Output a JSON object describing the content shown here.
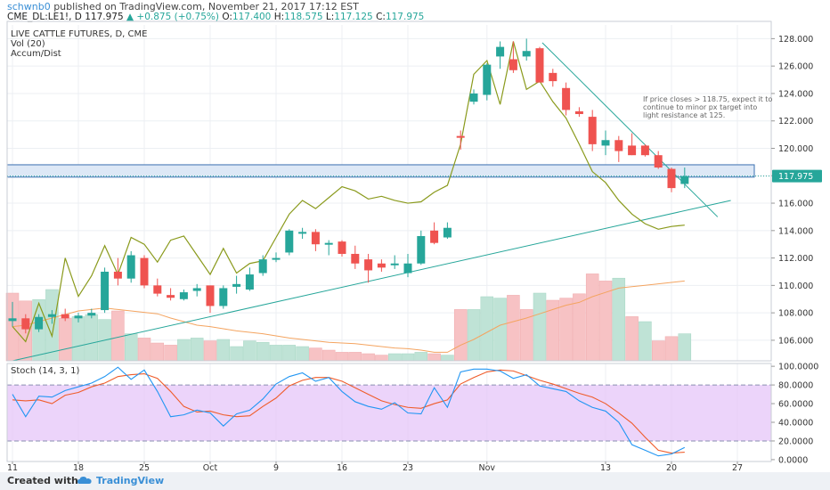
{
  "header": {
    "user": "schwnb0",
    "published": "published on TradingView.com, November 21, 2017 17:12 EST",
    "symbol": "CME_DL:LE1!, D",
    "last": "117.975",
    "change": "+0.875 (+0.75%)",
    "open_label": "O:",
    "open": "117.400",
    "high_label": "H:",
    "high": "118.575",
    "low_label": "L:",
    "low": "117.125",
    "close_label": "C:",
    "close": "117.975"
  },
  "legend": {
    "title": "LIVE CATTLE FUTURES, D, CME",
    "vol": "Vol (20)",
    "accum": "Accum/Dist"
  },
  "stoch_label": "Stoch (14, 3, 1)",
  "annotation": "If price closes > 118.75, expect it to continue to minor px target into light resistance at 125.",
  "footer": {
    "created": "Created with",
    "brand": "TradingView"
  },
  "colors": {
    "up": "#26a69a",
    "down": "#ef5350",
    "accum": "#8a9a1c",
    "vol_ma": "#f4a460",
    "trend": "#26a69a",
    "stoch_k": "#2196f3",
    "stoch_d": "#ef5c2a",
    "stoch_band": "#e6c6f8",
    "zone_fill": "#dde8f6",
    "zone_stroke": "#3a6fb0",
    "last_badge": "#26a69a"
  },
  "chart_data": [
    {
      "type": "candlestick",
      "title": "LIVE CATTLE FUTURES, D, CME",
      "ylim": [
        104.5,
        129
      ],
      "y_ticks": [
        "128.000",
        "126.000",
        "124.000",
        "122.000",
        "120.000",
        "118.000",
        "116.000",
        "114.000",
        "112.000",
        "110.000",
        "108.000",
        "106.000"
      ],
      "x_ticks": [
        "11",
        "18",
        "25",
        "Oct",
        "9",
        "16",
        "23",
        "Nov",
        "13",
        "20",
        "27"
      ],
      "last_price": "117.975",
      "candles": [
        [
          107.4,
          108.8,
          107.0,
          107.6
        ],
        [
          107.6,
          107.9,
          106.5,
          106.8
        ],
        [
          106.8,
          107.9,
          106.6,
          107.7
        ],
        [
          107.7,
          108.2,
          107.2,
          107.9
        ],
        [
          107.9,
          108.3,
          107.4,
          107.6
        ],
        [
          107.6,
          108.0,
          107.3,
          107.8
        ],
        [
          107.8,
          108.3,
          107.6,
          108.0
        ],
        [
          108.2,
          111.3,
          108.0,
          111.0
        ],
        [
          111.0,
          112.0,
          110.0,
          110.5
        ],
        [
          110.5,
          112.5,
          110.2,
          112.2
        ],
        [
          112.0,
          112.2,
          109.8,
          110.0
        ],
        [
          110.0,
          110.5,
          109.2,
          109.4
        ],
        [
          109.3,
          109.8,
          108.9,
          109.1
        ],
        [
          109.0,
          109.7,
          108.9,
          109.5
        ],
        [
          109.6,
          110.1,
          109.2,
          109.8
        ],
        [
          110.0,
          110.0,
          108.0,
          108.5
        ],
        [
          108.5,
          110.0,
          108.3,
          109.8
        ],
        [
          109.9,
          110.7,
          109.4,
          110.1
        ],
        [
          109.7,
          111.3,
          109.6,
          110.8
        ],
        [
          110.9,
          112.2,
          110.7,
          111.9
        ],
        [
          111.9,
          112.4,
          111.7,
          112.0
        ],
        [
          112.4,
          114.1,
          112.2,
          114.0
        ],
        [
          113.8,
          114.2,
          113.4,
          113.9
        ],
        [
          113.9,
          114.1,
          112.5,
          113.0
        ],
        [
          113.0,
          113.3,
          112.2,
          113.1
        ],
        [
          113.2,
          113.3,
          112.1,
          112.3
        ],
        [
          112.3,
          112.9,
          111.2,
          111.6
        ],
        [
          111.9,
          112.3,
          110.2,
          111.1
        ],
        [
          111.6,
          111.9,
          111.0,
          111.3
        ],
        [
          111.6,
          112.2,
          111.2,
          111.6
        ],
        [
          110.9,
          112.3,
          110.6,
          111.6
        ],
        [
          111.6,
          114.0,
          111.5,
          113.6
        ],
        [
          114.0,
          114.6,
          113.0,
          113.1
        ],
        [
          113.5,
          114.6,
          113.4,
          114.2
        ],
        [
          120.9,
          121.3,
          119.9,
          120.8
        ],
        [
          123.4,
          124.3,
          123.2,
          124.0
        ],
        [
          123.9,
          126.2,
          123.5,
          126.1
        ],
        [
          126.7,
          127.8,
          125.8,
          127.4
        ],
        [
          126.5,
          127.8,
          125.5,
          125.7
        ],
        [
          126.7,
          128.0,
          126.4,
          127.1
        ],
        [
          127.3,
          127.4,
          124.9,
          124.8
        ],
        [
          125.5,
          125.8,
          124.5,
          124.9
        ],
        [
          124.4,
          124.8,
          122.4,
          122.8
        ],
        [
          122.7,
          123.0,
          122.3,
          122.5
        ],
        [
          122.3,
          122.8,
          119.8,
          120.3
        ],
        [
          120.2,
          121.3,
          119.5,
          120.6
        ],
        [
          120.6,
          120.9,
          119.0,
          119.8
        ],
        [
          120.2,
          121.1,
          119.5,
          119.5
        ],
        [
          120.2,
          120.3,
          119.4,
          119.5
        ],
        [
          119.5,
          119.8,
          118.5,
          118.6
        ],
        [
          118.5,
          118.6,
          116.8,
          117.1
        ],
        [
          117.4,
          118.6,
          117.1,
          117.975
        ]
      ],
      "volume": [
        {
          "v": 0.95,
          "up": false
        },
        {
          "v": 0.84,
          "up": false
        },
        {
          "v": 0.86,
          "up": true
        },
        {
          "v": 1.0,
          "up": true
        },
        {
          "v": 0.6,
          "up": false
        },
        {
          "v": 0.62,
          "up": true
        },
        {
          "v": 0.65,
          "up": true
        },
        {
          "v": 0.58,
          "up": true
        },
        {
          "v": 0.7,
          "up": false
        },
        {
          "v": 0.38,
          "up": true
        },
        {
          "v": 0.32,
          "up": false
        },
        {
          "v": 0.25,
          "up": false
        },
        {
          "v": 0.22,
          "up": false
        },
        {
          "v": 0.3,
          "up": true
        },
        {
          "v": 0.32,
          "up": true
        },
        {
          "v": 0.28,
          "up": false
        },
        {
          "v": 0.3,
          "up": true
        },
        {
          "v": 0.2,
          "up": true
        },
        {
          "v": 0.28,
          "up": true
        },
        {
          "v": 0.26,
          "up": true
        },
        {
          "v": 0.22,
          "up": true
        },
        {
          "v": 0.22,
          "up": true
        },
        {
          "v": 0.2,
          "up": true
        },
        {
          "v": 0.18,
          "up": false
        },
        {
          "v": 0.15,
          "up": false
        },
        {
          "v": 0.12,
          "up": false
        },
        {
          "v": 0.12,
          "up": false
        },
        {
          "v": 0.1,
          "up": false
        },
        {
          "v": 0.08,
          "up": false
        },
        {
          "v": 0.1,
          "up": true
        },
        {
          "v": 0.1,
          "up": true
        },
        {
          "v": 0.12,
          "up": true
        },
        {
          "v": 0.1,
          "up": false
        },
        {
          "v": 0.08,
          "up": true
        },
        {
          "v": 0.72,
          "up": false
        },
        {
          "v": 0.72,
          "up": true
        },
        {
          "v": 0.9,
          "up": true
        },
        {
          "v": 0.88,
          "up": true
        },
        {
          "v": 0.92,
          "up": false
        },
        {
          "v": 0.72,
          "up": false
        },
        {
          "v": 0.95,
          "up": true
        },
        {
          "v": 0.85,
          "up": false
        },
        {
          "v": 0.88,
          "up": false
        },
        {
          "v": 0.94,
          "up": false
        },
        {
          "v": 1.22,
          "up": false
        },
        {
          "v": 1.12,
          "up": false
        },
        {
          "v": 1.16,
          "up": true
        },
        {
          "v": 0.62,
          "up": false
        },
        {
          "v": 0.55,
          "up": true
        },
        {
          "v": 0.28,
          "up": false
        },
        {
          "v": 0.34,
          "up": false
        },
        {
          "v": 0.38,
          "up": true
        }
      ],
      "volume_ma": [
        0.48,
        0.5,
        0.55,
        0.6,
        0.65,
        0.7,
        0.72,
        0.74,
        0.72,
        0.7,
        0.68,
        0.66,
        0.6,
        0.55,
        0.5,
        0.48,
        0.45,
        0.42,
        0.4,
        0.38,
        0.35,
        0.32,
        0.3,
        0.28,
        0.26,
        0.25,
        0.24,
        0.22,
        0.2,
        0.18,
        0.17,
        0.15,
        0.12,
        0.12,
        0.22,
        0.3,
        0.4,
        0.5,
        0.55,
        0.6,
        0.66,
        0.72,
        0.78,
        0.82,
        0.9,
        0.96,
        1.02,
        1.04,
        1.06,
        1.08,
        1.1,
        1.12
      ],
      "accum_dist": [
        107.0,
        105.9,
        108.7,
        106.3,
        112.0,
        109.2,
        110.7,
        112.9,
        110.8,
        113.5,
        113.0,
        111.7,
        113.3,
        113.6,
        112.2,
        110.8,
        112.7,
        110.9,
        111.6,
        111.8,
        113.5,
        115.2,
        116.2,
        115.6,
        116.4,
        117.2,
        116.9,
        116.3,
        116.5,
        116.2,
        116.0,
        116.1,
        116.8,
        117.3,
        120.3,
        125.4,
        126.4,
        123.2,
        127.8,
        124.3,
        124.9,
        123.4,
        122.2,
        120.3,
        118.3,
        117.5,
        116.2,
        115.2,
        114.5,
        114.1,
        114.3,
        114.4
      ],
      "trendlines": [
        {
          "from": [
            0,
            104.5
          ],
          "to": [
            54.5,
            116.2
          ]
        },
        {
          "from": [
            40.2,
            127.7
          ],
          "to": [
            53.5,
            115.0
          ]
        }
      ],
      "resistance_zone": [
        117.9,
        118.8
      ],
      "annotation": "If price closes > 118.75, expect it to continue to minor px target into light resistance at 125."
    },
    {
      "type": "line",
      "title": "Stoch (14, 3, 1)",
      "ylim": [
        -2,
        103
      ],
      "y_ticks": [
        "100.0000",
        "80.0000",
        "60.0000",
        "40.0000",
        "20.0000",
        "0.0000"
      ],
      "band": [
        20,
        80
      ],
      "series": [
        {
          "name": "%K",
          "values": [
            70,
            46,
            68,
            67,
            74,
            78,
            82,
            89,
            99,
            86,
            96,
            73,
            46,
            48,
            53,
            50,
            36,
            49,
            53,
            65,
            81,
            89,
            93,
            84,
            88,
            73,
            62,
            57,
            54,
            61,
            50,
            49,
            77,
            56,
            94,
            97,
            97,
            95,
            87,
            91,
            79,
            76,
            73,
            63,
            56,
            52,
            40,
            16,
            10,
            4,
            6,
            13
          ]
        },
        {
          "name": "%D",
          "values": [
            64,
            63,
            64,
            60,
            69,
            72,
            78,
            82,
            89,
            91,
            92,
            87,
            73,
            57,
            51,
            52,
            48,
            46,
            47,
            57,
            66,
            79,
            85,
            88,
            88,
            84,
            77,
            70,
            63,
            59,
            56,
            55,
            60,
            64,
            81,
            88,
            94,
            96,
            95,
            90,
            85,
            81,
            76,
            71,
            67,
            60,
            50,
            39,
            24,
            10,
            7,
            8
          ]
        }
      ]
    }
  ]
}
